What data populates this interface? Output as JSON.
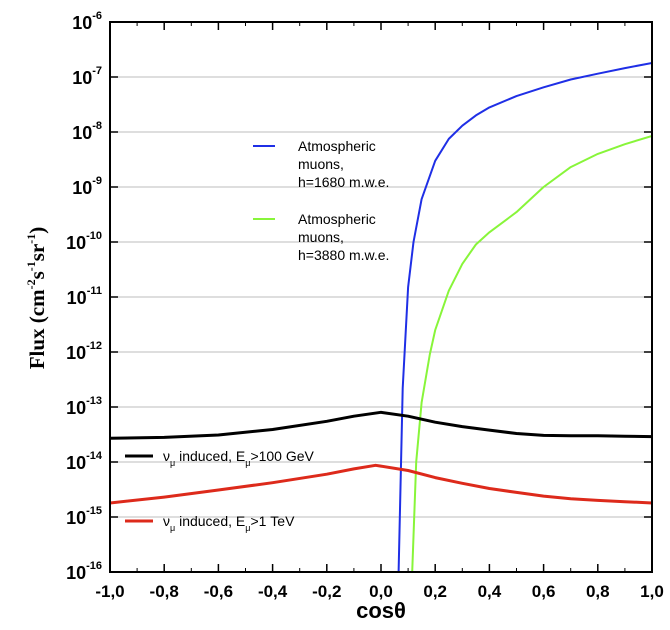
{
  "chart_data": {
    "type": "line",
    "xlabel": "cosθ",
    "ylabel": {
      "prefix": "Flux (cm",
      "sup1": "-2",
      "mid1": "s",
      "sup2": "-1",
      "mid2": "sr",
      "sup3": "-1",
      "suffix": ")"
    },
    "xlim": [
      -1.0,
      1.0
    ],
    "ylim_log10": [
      -16,
      -6
    ],
    "y_scale": "log",
    "x_ticks": [
      {
        "value": -1.0,
        "label": "-1,0"
      },
      {
        "value": -0.8,
        "label": "-0,8"
      },
      {
        "value": -0.6,
        "label": "-0,6"
      },
      {
        "value": -0.4,
        "label": "-0,4"
      },
      {
        "value": -0.2,
        "label": "-0,2"
      },
      {
        "value": 0.0,
        "label": "0,0"
      },
      {
        "value": 0.2,
        "label": "0,2"
      },
      {
        "value": 0.4,
        "label": "0,4"
      },
      {
        "value": 0.6,
        "label": "0,6"
      },
      {
        "value": 0.8,
        "label": "0,8"
      },
      {
        "value": 1.0,
        "label": "1,0"
      }
    ],
    "y_ticks": [
      {
        "exp": -16,
        "base": "10",
        "sup": "-16"
      },
      {
        "exp": -15,
        "base": "10",
        "sup": "-15"
      },
      {
        "exp": -14,
        "base": "10",
        "sup": "-14"
      },
      {
        "exp": -13,
        "base": "10",
        "sup": "-13"
      },
      {
        "exp": -12,
        "base": "10",
        "sup": "-12"
      },
      {
        "exp": -11,
        "base": "10",
        "sup": "-11"
      },
      {
        "exp": -10,
        "base": "10",
        "sup": "-10"
      },
      {
        "exp": -9,
        "base": "10",
        "sup": "-9"
      },
      {
        "exp": -8,
        "base": "10",
        "sup": "-8"
      },
      {
        "exp": -7,
        "base": "10",
        "sup": "-7"
      },
      {
        "exp": -6,
        "base": "10",
        "sup": "-6"
      }
    ],
    "series": [
      {
        "legend_lines": [
          "Atmospheric",
          "muons,",
          "h=1680 m.w.e."
        ],
        "color": "#1f2fe6",
        "width": 2,
        "x": [
          0.065,
          0.08,
          0.1,
          0.12,
          0.15,
          0.2,
          0.25,
          0.3,
          0.35,
          0.4,
          0.5,
          0.6,
          0.7,
          0.8,
          0.9,
          1.0
        ],
        "y": [
          1e-16,
          2.2e-13,
          1.5e-11,
          1e-10,
          6e-10,
          3e-09,
          7.5e-09,
          1.3e-08,
          2e-08,
          2.8e-08,
          4.5e-08,
          6.5e-08,
          9e-08,
          1.15e-07,
          1.45e-07,
          1.8e-07
        ]
      },
      {
        "legend_lines": [
          "Atmospheric",
          "muons,",
          "h=3880 m.w.e."
        ],
        "color": "#88f53a",
        "width": 2,
        "x": [
          0.115,
          0.13,
          0.15,
          0.18,
          0.2,
          0.25,
          0.3,
          0.35,
          0.4,
          0.5,
          0.6,
          0.7,
          0.8,
          0.9,
          1.0
        ],
        "y": [
          1e-16,
          1e-14,
          1.2e-13,
          9e-13,
          2.5e-12,
          1.3e-11,
          4e-11,
          9e-11,
          1.5e-10,
          3.5e-10,
          1e-09,
          2.3e-09,
          4e-09,
          6e-09,
          8.5e-09
        ]
      },
      {
        "legend_lines": [
          "ν",
          "μ",
          " induced, E",
          "μ",
          ">100 GeV"
        ],
        "color": "#000000",
        "width": 3,
        "x": [
          -1.0,
          -0.8,
          -0.6,
          -0.4,
          -0.2,
          -0.1,
          0.0,
          0.1,
          0.2,
          0.3,
          0.4,
          0.5,
          0.6,
          0.7,
          0.8,
          0.9,
          1.0
        ],
        "y": [
          2.7e-14,
          2.8e-14,
          3.1e-14,
          3.9e-14,
          5.5e-14,
          6.8e-14,
          8e-14,
          6.8e-14,
          5.3e-14,
          4.4e-14,
          3.8e-14,
          3.3e-14,
          3.05e-14,
          3e-14,
          3e-14,
          2.95e-14,
          2.9e-14
        ]
      },
      {
        "legend_lines": [
          "ν",
          "μ",
          " induced, E",
          "μ",
          ">1 TeV"
        ],
        "color": "#dd2a1b",
        "width": 3,
        "x": [
          -1.0,
          -0.8,
          -0.6,
          -0.4,
          -0.2,
          -0.1,
          -0.02,
          0.1,
          0.2,
          0.3,
          0.4,
          0.5,
          0.6,
          0.7,
          0.8,
          0.9,
          1.0
        ],
        "y": [
          1.8e-15,
          2.3e-15,
          3.1e-15,
          4.2e-15,
          6e-15,
          7.5e-15,
          8.7e-15,
          7e-15,
          5.2e-15,
          4.1e-15,
          3.3e-15,
          2.8e-15,
          2.4e-15,
          2.15e-15,
          2e-15,
          1.9e-15,
          1.8e-15
        ]
      }
    ]
  }
}
